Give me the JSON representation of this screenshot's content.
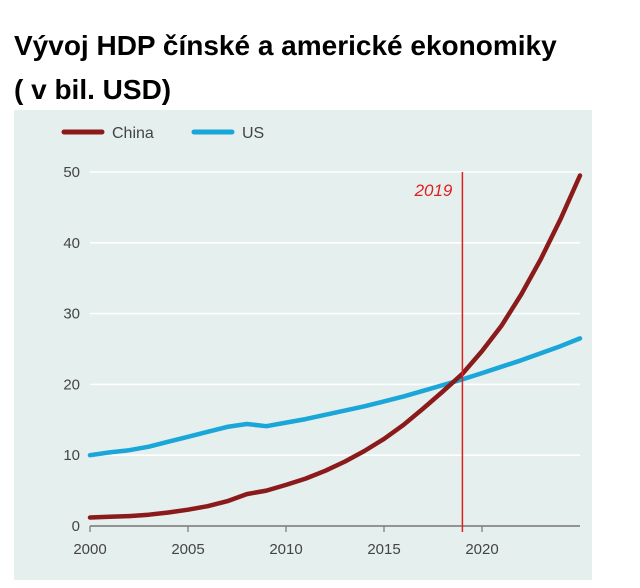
{
  "title": {
    "line1": "Vývoj HDP čínské a americké ekonomiky",
    "line2": "( v bil. USD)"
  },
  "colors": {
    "background": "#e4efee",
    "china": "#8b1b1b",
    "us": "#1aa6d8",
    "marker": "#e02020",
    "grid": "#ffffff",
    "text": "#444444"
  },
  "chart_data": {
    "type": "line",
    "xlim": [
      2000,
      2025
    ],
    "ylim": [
      0,
      50
    ],
    "x_ticks": [
      "2000",
      "2005",
      "2010",
      "2015",
      "2020"
    ],
    "y_ticks": [
      "0",
      "10",
      "20",
      "30",
      "40",
      "50"
    ],
    "grid": true,
    "legend_position": "top-left",
    "series": [
      {
        "name": "China",
        "x": [
          2000,
          2001,
          2002,
          2003,
          2004,
          2005,
          2006,
          2007,
          2008,
          2009,
          2010,
          2011,
          2012,
          2013,
          2014,
          2015,
          2016,
          2017,
          2018,
          2019,
          2020,
          2021,
          2022,
          2023,
          2024,
          2025
        ],
        "values": [
          1.2,
          1.3,
          1.4,
          1.6,
          1.9,
          2.3,
          2.8,
          3.5,
          4.5,
          5.0,
          5.8,
          6.7,
          7.8,
          9.1,
          10.6,
          12.3,
          14.3,
          16.6,
          19.0,
          21.5,
          24.7,
          28.3,
          32.7,
          37.7,
          43.3,
          49.5
        ]
      },
      {
        "name": "US",
        "x": [
          2000,
          2001,
          2002,
          2003,
          2004,
          2005,
          2006,
          2007,
          2008,
          2009,
          2010,
          2011,
          2012,
          2013,
          2014,
          2015,
          2016,
          2017,
          2018,
          2019,
          2020,
          2021,
          2022,
          2023,
          2024,
          2025
        ],
        "values": [
          10.0,
          10.4,
          10.7,
          11.2,
          11.9,
          12.6,
          13.3,
          14.0,
          14.4,
          14.1,
          14.6,
          15.1,
          15.7,
          16.3,
          16.9,
          17.6,
          18.3,
          19.1,
          19.9,
          20.7,
          21.6,
          22.5,
          23.4,
          24.4,
          25.4,
          26.5
        ]
      }
    ],
    "annotations": [
      {
        "x": 2019,
        "label": "2019"
      }
    ]
  }
}
